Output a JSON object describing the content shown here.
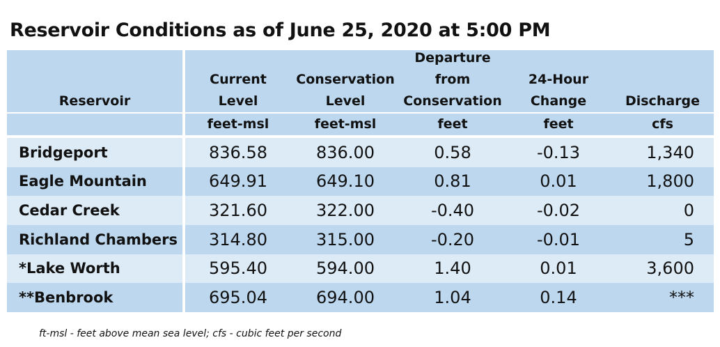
{
  "title": "Reservoir Conditions as of June 25, 2020 at 5:00 PM",
  "columns": [
    {
      "lines": [
        "",
        "",
        "",
        "Reservoir"
      ],
      "unit": ""
    },
    {
      "lines": [
        "",
        "Current",
        "Level"
      ],
      "unit": "feet-msl"
    },
    {
      "lines": [
        "",
        "Conservation",
        "Level"
      ],
      "unit": "feet-msl"
    },
    {
      "lines": [
        "Departure",
        "from",
        "Conservation"
      ],
      "unit": "feet"
    },
    {
      "lines": [
        "",
        "24-Hour",
        "Change"
      ],
      "unit": "feet"
    },
    {
      "lines": [
        "",
        "",
        "Discharge"
      ],
      "unit": "cfs"
    }
  ],
  "rows": [
    {
      "reservoir": "Bridgeport",
      "current": "836.58",
      "conservation": "836.00",
      "departure": "0.58",
      "change": "-0.13",
      "discharge": "1,340"
    },
    {
      "reservoir": "Eagle Mountain",
      "current": "649.91",
      "conservation": "649.10",
      "departure": "0.81",
      "change": "0.01",
      "discharge": "1,800"
    },
    {
      "reservoir": "Cedar Creek",
      "current": "321.60",
      "conservation": "322.00",
      "departure": "-0.40",
      "change": "-0.02",
      "discharge": "0"
    },
    {
      "reservoir": "Richland Chambers",
      "current": "314.80",
      "conservation": "315.00",
      "departure": "-0.20",
      "change": "-0.01",
      "discharge": "5"
    },
    {
      "reservoir": "*Lake Worth",
      "current": "595.40",
      "conservation": "594.00",
      "departure": "1.40",
      "change": "0.01",
      "discharge": "3,600"
    },
    {
      "reservoir": "**Benbrook",
      "current": "695.04",
      "conservation": "694.00",
      "departure": "1.04",
      "change": "0.14",
      "discharge": "***"
    }
  ],
  "footnote": "ft-msl - feet above mean sea level; cfs - cubic feet per second",
  "colors": {
    "header_fill": "#bdd7ee",
    "row_light": "#ddebf7",
    "row_dark": "#bdd7ee"
  }
}
